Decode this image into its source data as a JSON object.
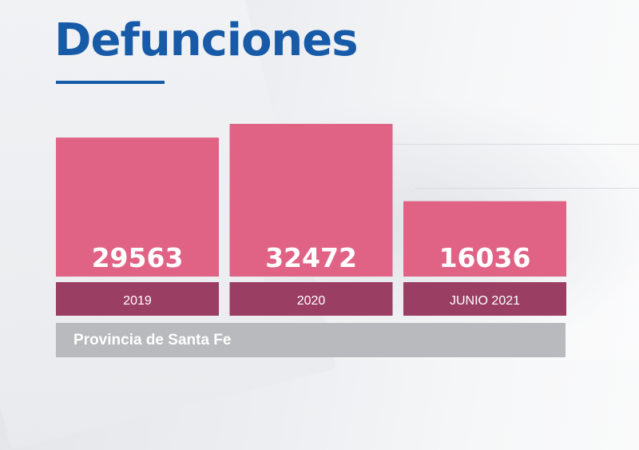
{
  "title": "Defunciones",
  "region": "Provincia de Santa Fe",
  "colors": {
    "title": "#175aa8",
    "bar": "#e06386",
    "category_band": "#9b3e64",
    "region_band": "#b9babd"
  },
  "chart_data": {
    "type": "bar",
    "title": "Defunciones",
    "categories": [
      "2019",
      "2020",
      "JUNIO 2021"
    ],
    "values": [
      29563,
      32472,
      16036
    ],
    "value_labels": [
      "29563",
      "32472",
      "16036"
    ],
    "xlabel": "",
    "ylabel": "",
    "grid": false,
    "legend": "none"
  }
}
